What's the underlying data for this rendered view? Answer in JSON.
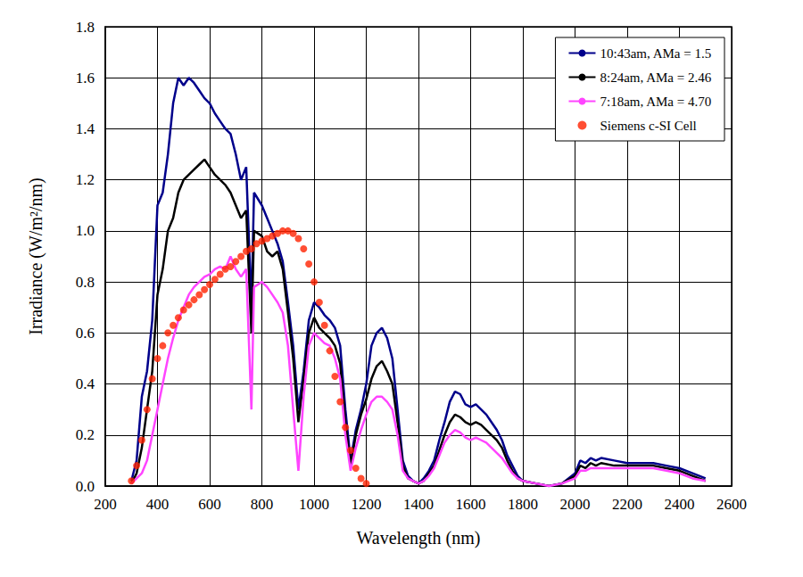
{
  "chart_data": {
    "type": "line",
    "x_label": "Wavelength (nm)",
    "y_label": "Irradiance (W/m²/nm)",
    "xlim": [
      200,
      2600
    ],
    "xticks": [
      200,
      400,
      600,
      800,
      1000,
      1200,
      1400,
      1600,
      1800,
      2000,
      2200,
      2400,
      2600
    ],
    "ylim": [
      0,
      1.8
    ],
    "yticks": [
      {
        "value": 0,
        "label": "0.0"
      },
      0.2,
      0.4,
      0.6,
      0.8,
      {
        "value": 1,
        "label": "1.0"
      },
      1.2,
      1.4,
      1.6,
      1.8
    ],
    "grid": true,
    "legend": "upper right",
    "x": [
      300,
      320,
      340,
      360,
      380,
      400,
      420,
      440,
      460,
      480,
      500,
      520,
      540,
      560,
      580,
      600,
      620,
      640,
      660,
      680,
      700,
      720,
      740,
      760,
      770,
      800,
      820,
      840,
      860,
      880,
      900,
      920,
      940,
      960,
      980,
      1000,
      1020,
      1040,
      1060,
      1080,
      1100,
      1120,
      1140,
      1160,
      1180,
      1200,
      1220,
      1240,
      1260,
      1280,
      1300,
      1320,
      1340,
      1360,
      1380,
      1400,
      1420,
      1440,
      1460,
      1480,
      1500,
      1520,
      1540,
      1560,
      1580,
      1600,
      1620,
      1640,
      1660,
      1680,
      1700,
      1720,
      1740,
      1760,
      1780,
      1800,
      1850,
      1900,
      1950,
      2000,
      2020,
      2040,
      2060,
      2080,
      2100,
      2150,
      2200,
      2250,
      2300,
      2350,
      2400,
      2450,
      2500
    ],
    "series": [
      {
        "name": "10:43am, AMa = 1.5",
        "color": "#00008b",
        "type": "line",
        "marker": "none",
        "values": [
          0.02,
          0.1,
          0.35,
          0.45,
          0.65,
          1.1,
          1.15,
          1.3,
          1.5,
          1.6,
          1.57,
          1.6,
          1.58,
          1.55,
          1.52,
          1.5,
          1.46,
          1.43,
          1.4,
          1.38,
          1.3,
          1.2,
          1.25,
          0.7,
          1.15,
          1.1,
          1.05,
          1.0,
          0.95,
          0.88,
          0.72,
          0.55,
          0.3,
          0.45,
          0.65,
          0.72,
          0.7,
          0.67,
          0.65,
          0.62,
          0.55,
          0.3,
          0.1,
          0.22,
          0.3,
          0.4,
          0.55,
          0.6,
          0.62,
          0.58,
          0.5,
          0.3,
          0.1,
          0.04,
          0.02,
          0.01,
          0.03,
          0.06,
          0.1,
          0.18,
          0.25,
          0.33,
          0.37,
          0.36,
          0.32,
          0.31,
          0.32,
          0.3,
          0.28,
          0.25,
          0.22,
          0.18,
          0.12,
          0.08,
          0.04,
          0.02,
          0.01,
          0.0,
          0.01,
          0.05,
          0.1,
          0.09,
          0.11,
          0.1,
          0.11,
          0.1,
          0.09,
          0.09,
          0.09,
          0.08,
          0.07,
          0.05,
          0.03
        ]
      },
      {
        "name": "8:24am, AMa = 2.46",
        "color": "#000000",
        "type": "line",
        "marker": "none",
        "values": [
          0.01,
          0.05,
          0.15,
          0.3,
          0.45,
          0.75,
          0.85,
          1.0,
          1.05,
          1.15,
          1.2,
          1.22,
          1.24,
          1.26,
          1.28,
          1.25,
          1.22,
          1.2,
          1.18,
          1.15,
          1.1,
          1.05,
          1.08,
          0.6,
          1.0,
          0.98,
          0.92,
          0.9,
          0.92,
          0.85,
          0.68,
          0.5,
          0.25,
          0.42,
          0.6,
          0.66,
          0.62,
          0.6,
          0.58,
          0.55,
          0.48,
          0.25,
          0.08,
          0.2,
          0.28,
          0.34,
          0.42,
          0.47,
          0.49,
          0.45,
          0.4,
          0.25,
          0.08,
          0.03,
          0.02,
          0.01,
          0.02,
          0.05,
          0.08,
          0.14,
          0.2,
          0.25,
          0.28,
          0.27,
          0.25,
          0.24,
          0.25,
          0.24,
          0.22,
          0.2,
          0.18,
          0.15,
          0.1,
          0.06,
          0.03,
          0.02,
          0.01,
          0.0,
          0.01,
          0.04,
          0.08,
          0.07,
          0.09,
          0.08,
          0.09,
          0.08,
          0.08,
          0.08,
          0.08,
          0.07,
          0.06,
          0.04,
          0.02
        ]
      },
      {
        "name": "7:18am, AMa = 4.70",
        "color": "#ff44ff",
        "type": "line",
        "marker": "none",
        "values": [
          0.01,
          0.03,
          0.05,
          0.1,
          0.2,
          0.3,
          0.4,
          0.5,
          0.58,
          0.65,
          0.7,
          0.75,
          0.78,
          0.8,
          0.82,
          0.83,
          0.85,
          0.86,
          0.85,
          0.9,
          0.85,
          0.82,
          0.85,
          0.3,
          0.78,
          0.8,
          0.78,
          0.75,
          0.72,
          0.68,
          0.55,
          0.3,
          0.06,
          0.35,
          0.55,
          0.6,
          0.58,
          0.56,
          0.55,
          0.5,
          0.42,
          0.2,
          0.06,
          0.15,
          0.22,
          0.28,
          0.33,
          0.35,
          0.35,
          0.33,
          0.3,
          0.2,
          0.06,
          0.03,
          0.02,
          0.01,
          0.02,
          0.04,
          0.07,
          0.12,
          0.17,
          0.2,
          0.22,
          0.21,
          0.19,
          0.18,
          0.19,
          0.18,
          0.17,
          0.15,
          0.13,
          0.11,
          0.08,
          0.05,
          0.03,
          0.02,
          0.01,
          0.0,
          0.01,
          0.03,
          0.06,
          0.06,
          0.07,
          0.07,
          0.07,
          0.07,
          0.07,
          0.07,
          0.07,
          0.06,
          0.05,
          0.03,
          0.02
        ]
      },
      {
        "name": "Siemens c-SI Cell",
        "color": "#ff2200",
        "type": "scatter",
        "marker": "circle",
        "x": [
          300,
          320,
          340,
          360,
          380,
          400,
          420,
          440,
          460,
          480,
          500,
          520,
          540,
          560,
          580,
          600,
          620,
          640,
          660,
          680,
          700,
          720,
          740,
          760,
          780,
          800,
          820,
          840,
          860,
          880,
          900,
          920,
          940,
          960,
          980,
          1000,
          1020,
          1040,
          1060,
          1080,
          1100,
          1120,
          1140,
          1160,
          1180,
          1200
        ],
        "values": [
          0.02,
          0.08,
          0.18,
          0.3,
          0.42,
          0.5,
          0.55,
          0.6,
          0.63,
          0.66,
          0.69,
          0.71,
          0.73,
          0.75,
          0.77,
          0.79,
          0.81,
          0.83,
          0.85,
          0.86,
          0.88,
          0.9,
          0.92,
          0.93,
          0.95,
          0.96,
          0.97,
          0.98,
          0.99,
          1.0,
          1.0,
          0.99,
          0.97,
          0.93,
          0.87,
          0.8,
          0.72,
          0.63,
          0.53,
          0.43,
          0.33,
          0.23,
          0.14,
          0.07,
          0.03,
          0.01
        ]
      }
    ]
  }
}
